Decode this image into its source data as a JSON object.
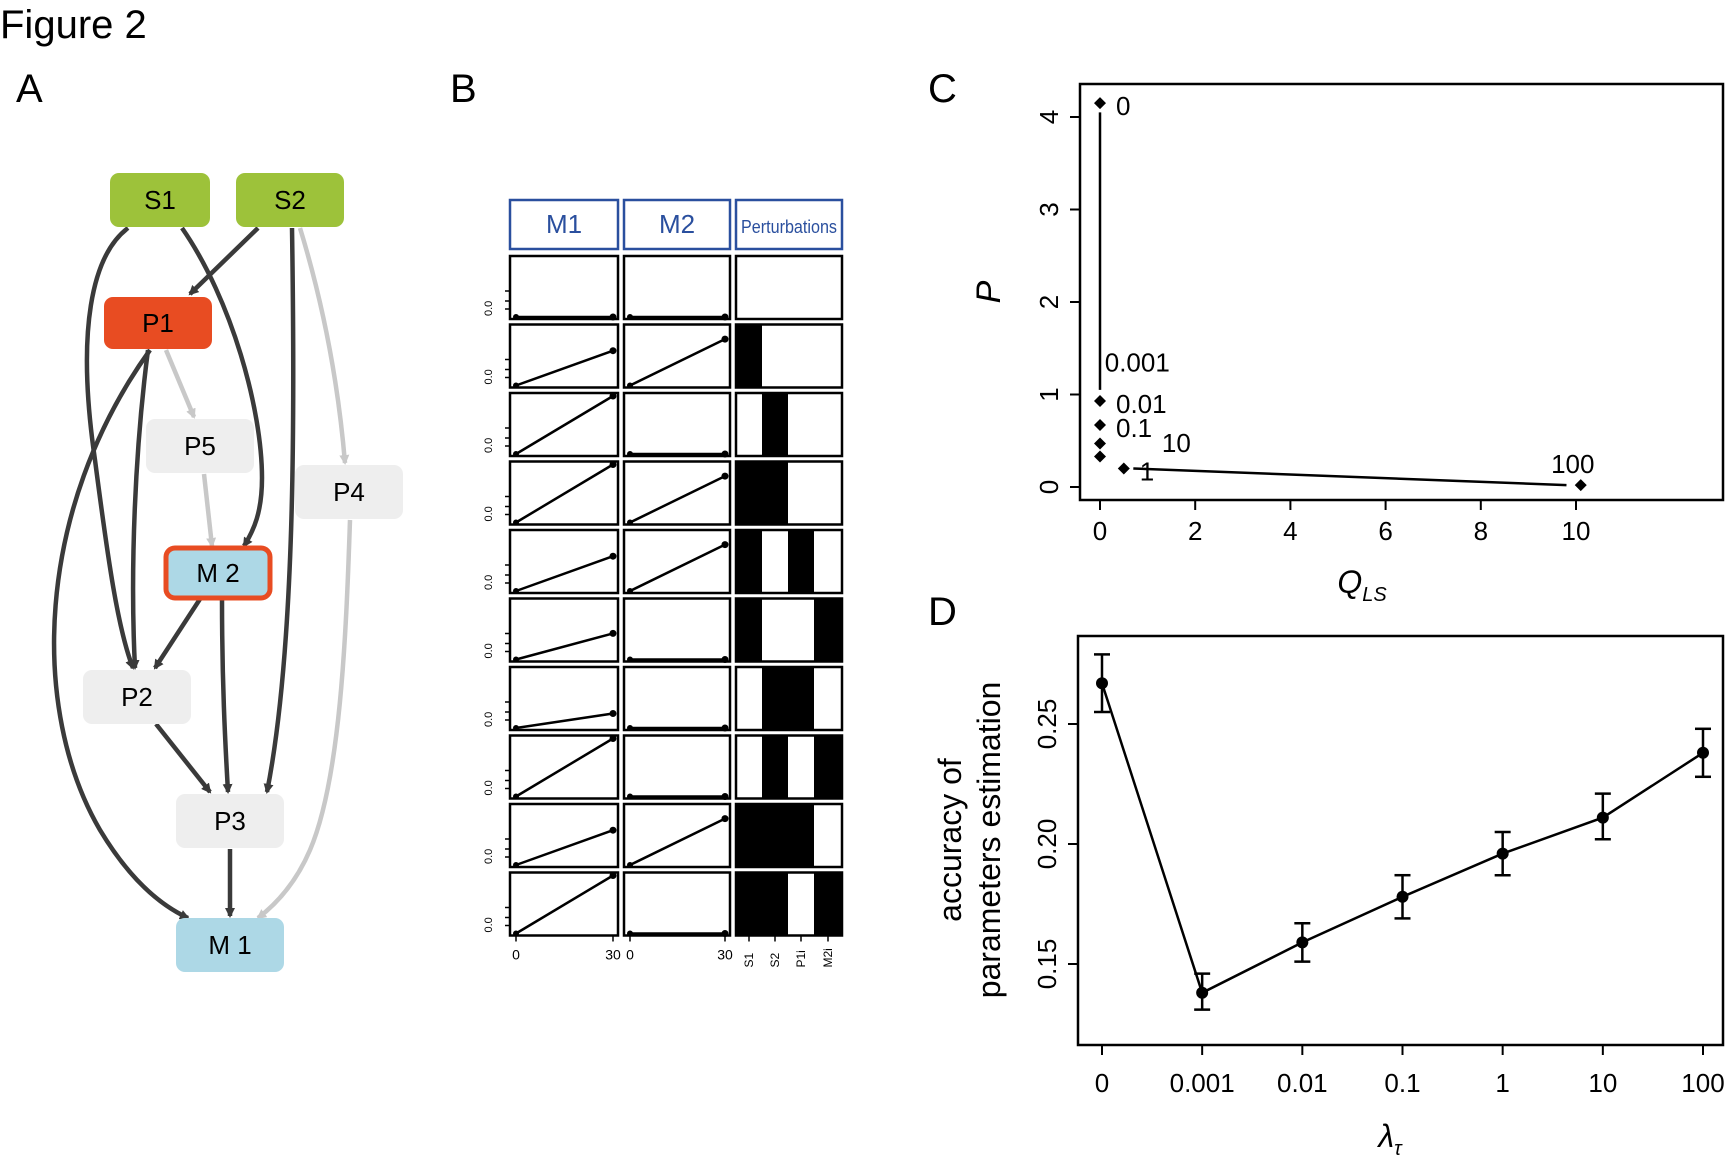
{
  "figure_title": "Figure 2",
  "panel_labels": {
    "a": "A",
    "b": "B",
    "c": "C",
    "d": "D"
  },
  "network": {
    "nodes": [
      {
        "id": "S1",
        "label": "S1",
        "kind": "stimulus",
        "fill": "#9dc23a"
      },
      {
        "id": "S2",
        "label": "S2",
        "kind": "stimulus",
        "fill": "#9dc23a"
      },
      {
        "id": "P1",
        "label": "P1",
        "kind": "perturbed",
        "fill": "#e84c22"
      },
      {
        "id": "P5",
        "label": "P5",
        "kind": "protein",
        "fill": "#eeeeee"
      },
      {
        "id": "P4",
        "label": "P4",
        "kind": "protein",
        "fill": "#eeeeee"
      },
      {
        "id": "M2",
        "label": "M 2",
        "kind": "measured-perturbed",
        "fill": "#add8e6",
        "border": "#e84c22"
      },
      {
        "id": "P2",
        "label": "P2",
        "kind": "protein",
        "fill": "#eeeeee"
      },
      {
        "id": "P3",
        "label": "P3",
        "kind": "protein",
        "fill": "#eeeeee"
      },
      {
        "id": "M1",
        "label": "M 1",
        "kind": "measured",
        "fill": "#add8e6"
      }
    ],
    "edges": [
      {
        "from": "S1",
        "to": "P2",
        "active": true
      },
      {
        "from": "S1",
        "to": "M2",
        "active": true
      },
      {
        "from": "S2",
        "to": "P1",
        "active": true
      },
      {
        "from": "S2",
        "to": "P3",
        "active": true
      },
      {
        "from": "S2",
        "to": "P4",
        "active": false
      },
      {
        "from": "P1",
        "to": "P5",
        "active": false
      },
      {
        "from": "P1",
        "to": "P2",
        "active": true
      },
      {
        "from": "P1",
        "to": "M1",
        "active": true
      },
      {
        "from": "P5",
        "to": "M2",
        "active": false
      },
      {
        "from": "M2",
        "to": "P2",
        "active": true
      },
      {
        "from": "M2",
        "to": "P3",
        "active": true
      },
      {
        "from": "P2",
        "to": "P3",
        "active": true
      },
      {
        "from": "P3",
        "to": "M1",
        "active": true
      },
      {
        "from": "P4",
        "to": "M1",
        "active": false
      }
    ],
    "colors": {
      "active_edge": "#3a3a3a",
      "inactive_edge": "#c8c8c8"
    }
  },
  "panel_b": {
    "headers": [
      "M1",
      "M2",
      "Perturbations"
    ],
    "y_tick_label": "0.0",
    "x_tick_labels": [
      "0",
      "30"
    ],
    "perturbation_labels": [
      "S1",
      "S2",
      "P1i",
      "M2i"
    ],
    "header_color": "#2a4f9e"
  },
  "chart_data": [
    {
      "panel": "B",
      "type": "line",
      "description_note": "",
      "x": [
        0,
        30
      ],
      "rows": [
        {
          "M1_end": 0.0,
          "M2_end": 0.0,
          "perturbations": [
            0,
            0,
            0,
            0
          ]
        },
        {
          "M1_end": 0.6,
          "M2_end": 0.8,
          "perturbations": [
            1,
            0,
            0,
            0
          ]
        },
        {
          "M1_end": 1.0,
          "M2_end": 0.0,
          "perturbations": [
            0,
            1,
            0,
            0
          ]
        },
        {
          "M1_end": 1.0,
          "M2_end": 0.8,
          "perturbations": [
            1,
            1,
            0,
            0
          ]
        },
        {
          "M1_end": 0.6,
          "M2_end": 0.8,
          "perturbations": [
            1,
            0,
            1,
            0
          ]
        },
        {
          "M1_end": 0.45,
          "M2_end": 0.0,
          "perturbations": [
            1,
            0,
            0,
            1
          ]
        },
        {
          "M1_end": 0.25,
          "M2_end": 0.0,
          "perturbations": [
            0,
            1,
            1,
            0
          ]
        },
        {
          "M1_end": 1.0,
          "M2_end": 0.0,
          "perturbations": [
            0,
            1,
            0,
            1
          ]
        },
        {
          "M1_end": 0.6,
          "M2_end": 0.8,
          "perturbations": [
            1,
            1,
            1,
            0
          ]
        },
        {
          "M1_end": 1.0,
          "M2_end": 0.0,
          "perturbations": [
            1,
            1,
            0,
            1
          ]
        }
      ]
    },
    {
      "panel": "C",
      "type": "scatter",
      "xlabel": "Q",
      "xlabel_sub": "LS",
      "ylabel": "P",
      "xlim": [
        0,
        10
      ],
      "ylim": [
        0,
        4.2
      ],
      "x_ticks": [
        0,
        2,
        4,
        6,
        8,
        10
      ],
      "y_ticks": [
        0,
        1,
        2,
        3,
        4
      ],
      "points": [
        {
          "x": 0.0,
          "y": 4.15,
          "label": "0"
        },
        {
          "x": 0.0,
          "y": 0.93,
          "label": "0.01"
        },
        {
          "x": 0.0,
          "y": 0.67,
          "label": "0.1"
        },
        {
          "x": 0.0,
          "y": 0.47,
          "label": ""
        },
        {
          "x": 0.0,
          "y": 0.33,
          "label": ""
        },
        {
          "x": 0.5,
          "y": 0.2,
          "label": "1"
        },
        {
          "x": 10.1,
          "y": 0.02,
          "label": "100"
        }
      ],
      "extra_labels": [
        {
          "text": "0.001",
          "x": 0.1,
          "y": 1.25
        },
        {
          "text": "10",
          "x": 1.3,
          "y": 0.38
        }
      ],
      "line_segments": [
        [
          [
            0.0,
            4.05
          ],
          [
            0.0,
            1.05
          ]
        ],
        [
          [
            0.7,
            0.2
          ],
          [
            9.8,
            0.02
          ]
        ]
      ]
    },
    {
      "panel": "D",
      "type": "line",
      "xlabel": "λ",
      "xlabel_sub": "τ",
      "ylabel": [
        "accuracy of",
        "parameters estimation"
      ],
      "categories": [
        "0",
        "0.001",
        "0.01",
        "0.1",
        "1",
        "10",
        "100"
      ],
      "values": [
        0.267,
        0.138,
        0.159,
        0.178,
        0.196,
        0.211,
        0.238
      ],
      "err_low": [
        0.255,
        0.131,
        0.151,
        0.169,
        0.187,
        0.202,
        0.228
      ],
      "err_high": [
        0.279,
        0.146,
        0.167,
        0.187,
        0.205,
        0.221,
        0.248
      ],
      "ylim": [
        0.128,
        0.287
      ],
      "y_ticks": [
        0.15,
        0.2,
        0.25
      ],
      "y_tick_labels": [
        "0.15",
        "0.20",
        "0.25"
      ]
    }
  ]
}
